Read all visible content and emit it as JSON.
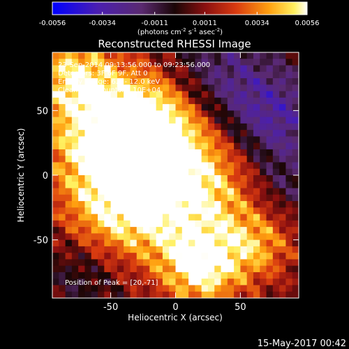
{
  "chart_data": {
    "type": "heatmap",
    "title": "Reconstructed RHESSI Image",
    "xlabel": "Heliocentric X (arcsec)",
    "ylabel": "Heliocentric Y (arcsec)",
    "xlim": [
      -95,
      95
    ],
    "ylim": [
      -95,
      95
    ],
    "x_ticks": [
      -50,
      0,
      50
    ],
    "y_ticks": [
      -50,
      0,
      50
    ],
    "x_tick_labels": [
      "-50",
      "0",
      "50"
    ],
    "y_tick_labels": [
      "-50",
      "0",
      "50"
    ],
    "colorbar": {
      "min": -0.0056,
      "max": 0.0056,
      "ticks": [
        -0.0056,
        -0.0034,
        -0.0011,
        0.0011,
        0.0034,
        0.0056
      ],
      "tick_labels": [
        "-0.0056",
        "-0.0034",
        "-0.0011",
        "0.0011",
        "0.0034",
        "0.0056"
      ],
      "unit_label": "(photons cm",
      "unit_sup1": "-2",
      "unit_mid": " s",
      "unit_sup2": "-1",
      "unit_mid2": " asec",
      "unit_sup3": "-2",
      "unit_end": ")"
    },
    "annotations": [
      "23-Sep-2014 09:13:56.000 to 09:23:56.000",
      "Detectors: 3F 6F 9F, Att 0",
      "Energy Range: 6.0 - 12.0 keV",
      "Clean      total counts: 6.10E+04"
    ],
    "peak_label": "Position of Peak = [20,-71]",
    "peak": [
      20,
      -71
    ],
    "blobs": [
      {
        "x": 15,
        "y": -5,
        "amp": 1.0,
        "w": 38
      },
      {
        "x": -60,
        "y": 30,
        "amp": 0.85,
        "w": 35
      },
      {
        "x": -20,
        "y": 40,
        "amp": 0.9,
        "w": 30
      },
      {
        "x": -45,
        "y": -30,
        "amp": 0.75,
        "w": 30
      },
      {
        "x": 20,
        "y": -71,
        "amp": 1.0,
        "w": 22
      },
      {
        "x": 65,
        "y": -55,
        "amp": 0.55,
        "w": 20
      },
      {
        "x": -80,
        "y": 80,
        "amp": 0.7,
        "w": 22
      },
      {
        "x": 30,
        "y": 75,
        "amp": -0.55,
        "w": 30
      },
      {
        "x": 75,
        "y": 40,
        "amp": -0.75,
        "w": 30
      },
      {
        "x": -70,
        "y": -75,
        "amp": -0.35,
        "w": 22
      },
      {
        "x": 85,
        "y": -10,
        "amp": -0.3,
        "w": 18
      }
    ]
  },
  "timestamp": "15-May-2017 00:42"
}
